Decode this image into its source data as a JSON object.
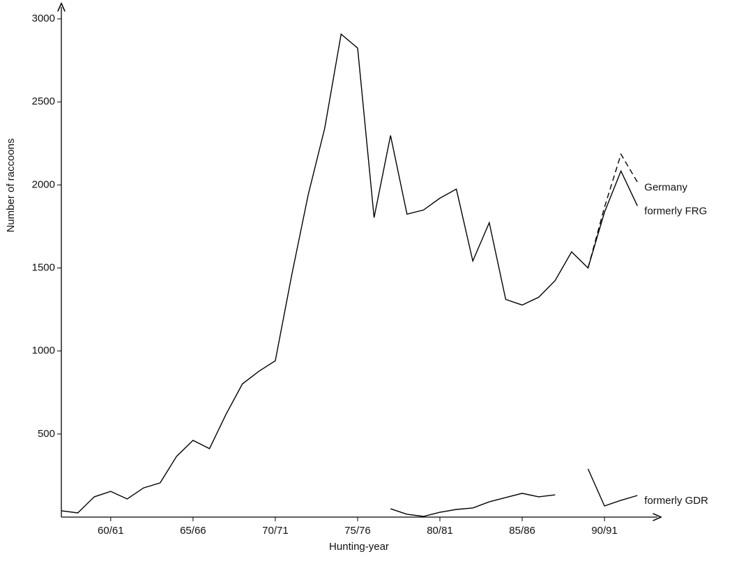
{
  "chart_data": {
    "type": "line",
    "x_label": "Hunting-year",
    "y_label": "Number of raccoons",
    "x": [
      57,
      58,
      59,
      60,
      61,
      62,
      63,
      64,
      65,
      66,
      67,
      68,
      69,
      70,
      71,
      72,
      73,
      74,
      75,
      76,
      77,
      78,
      79,
      80,
      81,
      82,
      83,
      84,
      85,
      86,
      87,
      88,
      89,
      90,
      91,
      92
    ],
    "series": [
      {
        "name": "formerly FRG",
        "color": "#000000",
        "style": "solid",
        "values": [
          38,
          25,
          122,
          155,
          109,
          176,
          206,
          366,
          462,
          412,
          618,
          802,
          878,
          941,
          1458,
          1941,
          2340,
          2908,
          2824,
          1803,
          2298,
          1824,
          1849,
          1920,
          1975,
          1542,
          1773,
          1311,
          1277,
          1324,
          1424,
          1597,
          1500,
          1836,
          2084,
          1874
        ]
      },
      {
        "name": "Germany",
        "color": "#000000",
        "style": "dashed",
        "values": [
          null,
          null,
          null,
          null,
          null,
          null,
          null,
          null,
          null,
          null,
          null,
          null,
          null,
          null,
          null,
          null,
          null,
          null,
          null,
          null,
          null,
          null,
          null,
          null,
          null,
          null,
          null,
          null,
          null,
          null,
          null,
          null,
          1500,
          1866,
          2185,
          2017
        ]
      },
      {
        "name": "formerly GDR",
        "color": "#000000",
        "style": "solid",
        "values": [
          null,
          null,
          null,
          null,
          null,
          null,
          null,
          null,
          null,
          null,
          null,
          null,
          null,
          null,
          null,
          null,
          null,
          null,
          null,
          null,
          50,
          17,
          4,
          29,
          46,
          55,
          92,
          118,
          143,
          122,
          134,
          null,
          290,
          67,
          101,
          130
        ]
      }
    ],
    "xlim": [
      57,
      93.3
    ],
    "ylim": [
      0,
      3080
    ],
    "xticks": [
      {
        "value": 60,
        "label": "60/61"
      },
      {
        "value": 65,
        "label": "65/66"
      },
      {
        "value": 70,
        "label": "70/71"
      },
      {
        "value": 75,
        "label": "75/76"
      },
      {
        "value": 80,
        "label": "80/81"
      },
      {
        "value": 85,
        "label": "85/86"
      },
      {
        "value": 90,
        "label": "90/91"
      }
    ],
    "yticks": [
      500,
      1000,
      1500,
      2000,
      2500,
      3000
    ],
    "grid": false
  }
}
